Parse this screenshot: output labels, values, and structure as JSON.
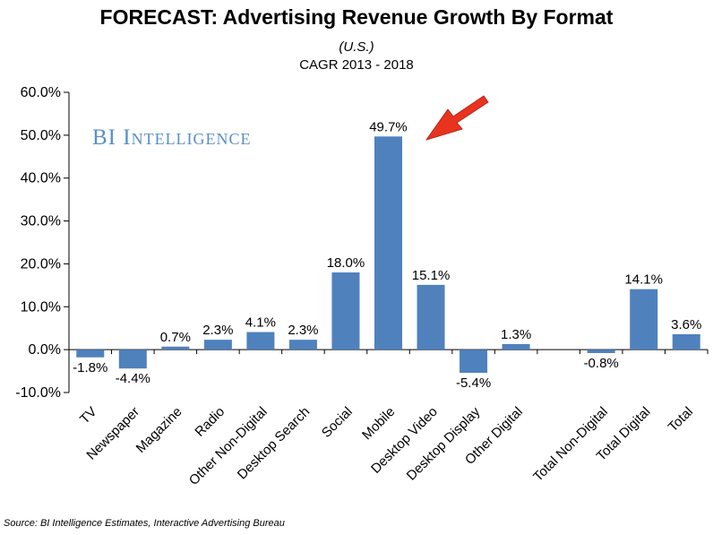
{
  "chart_data": {
    "type": "bar",
    "title": "FORECAST: Advertising Revenue Growth By Format",
    "subtitle": "(U.S.)",
    "subtitle2": "CAGR 2013 - 2018",
    "categories": [
      "TV",
      "Newspaper",
      "Magazine",
      "Radio",
      "Other Non-Digital",
      "Desktop Search",
      "Social",
      "Mobile",
      "Desktop Video",
      "Desktop Display",
      "Other Digital",
      "",
      "Total Non-Digital",
      "Total Digital",
      "Total"
    ],
    "values": [
      -1.8,
      -4.4,
      0.7,
      2.3,
      4.1,
      2.3,
      18.0,
      49.7,
      15.1,
      -5.4,
      1.3,
      null,
      -0.8,
      14.1,
      3.6
    ],
    "data_labels": [
      "-1.8%",
      "-4.4%",
      "0.7%",
      "2.3%",
      "4.1%",
      "2.3%",
      "18.0%",
      "49.7%",
      "15.1%",
      "-5.4%",
      "1.3%",
      "",
      "-0.8%",
      "14.1%",
      "3.6%"
    ],
    "y_ticks": [
      "-10.0%",
      "0.0%",
      "10.0%",
      "20.0%",
      "30.0%",
      "40.0%",
      "50.0%",
      "60.0%"
    ],
    "ylim": [
      -10,
      60
    ],
    "grid": false,
    "bar_color": "#4f81bd",
    "annotation": "red arrow pointing to Mobile bar"
  },
  "watermark": "BI Intelligence",
  "source": "Source: BI Intelligence Estimates, Interactive Advertising Bureau",
  "arrow_color": "#e8331e"
}
